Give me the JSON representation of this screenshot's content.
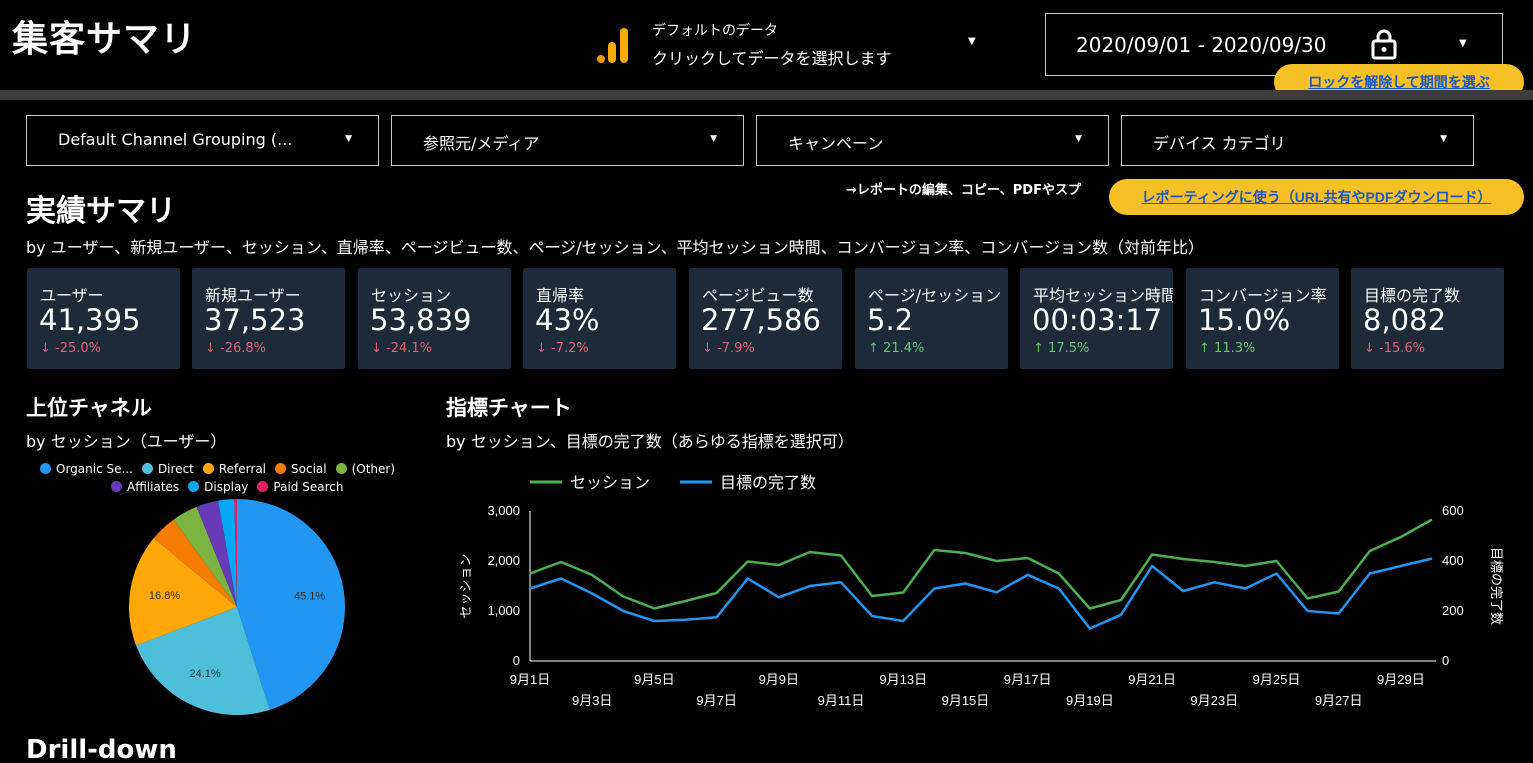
{
  "header": {
    "title": "集客サマリ",
    "datasource_line1": "デフォルトのデータ",
    "datasource_line2": "クリックしてデータを選択します",
    "date_range": "2020/09/01 - 2020/09/30",
    "unlock_button": "ロックを解除して期間を選ぶ"
  },
  "filters": [
    {
      "label": "Default Channel Grouping (..."
    },
    {
      "label": "参照元/メディア"
    },
    {
      "label": "キャンペーン"
    },
    {
      "label": "デバイス カテゴリ"
    }
  ],
  "summary": {
    "title": "実績サマリ",
    "edit_note": "→レポートの編集、コピー、PDFやスプ",
    "report_button": "レポーティングに使う（URL共有やPDFダウンロード）",
    "subtitle": "by ユーザー、新規ユーザー、セッション、直帰率、ページビュー数、ページ/セッション、平均セッション時間、コンバージョン率、コンバージョン数（対前年比）"
  },
  "kpis": [
    {
      "label": "ユーザー",
      "value": "41,395",
      "delta": "-25.0%",
      "dir": "down"
    },
    {
      "label": "新規ユーザー",
      "value": "37,523",
      "delta": "-26.8%",
      "dir": "down"
    },
    {
      "label": "セッション",
      "value": "53,839",
      "delta": "-24.1%",
      "dir": "down"
    },
    {
      "label": "直帰率",
      "value": "43%",
      "delta": "-7.2%",
      "dir": "down"
    },
    {
      "label": "ページビュー数",
      "value": "277,586",
      "delta": "-7.9%",
      "dir": "down"
    },
    {
      "label": "ページ/セッション",
      "value": "5.2",
      "delta": "21.4%",
      "dir": "up"
    },
    {
      "label": "平均セッション時間",
      "value": "00:03:17",
      "delta": "17.5%",
      "dir": "up"
    },
    {
      "label": "コンバージョン率",
      "value": "15.0%",
      "delta": "11.3%",
      "dir": "up"
    },
    {
      "label": "目標の完了数",
      "value": "8,082",
      "delta": "-15.6%",
      "dir": "down"
    }
  ],
  "channels": {
    "title": "上位チャネル",
    "subtitle": "by セッション（ユーザー）"
  },
  "metric_chart": {
    "title": "指標チャート",
    "subtitle": "by セッション、目標の完了数（あらゆる指標を選択可）"
  },
  "drilldown": {
    "title": "Drill-down"
  },
  "colors": {
    "background": "#000000",
    "kpi_card": "#1c2a3a",
    "accent_yellow": "#f6c026",
    "link_blue": "#1a57c8",
    "negative": "#e5606b",
    "positive": "#6cc56a"
  },
  "icons": {
    "datasource": "analytics-bars-icon",
    "date": "lock-icon",
    "dropdown": "caret-down-icon",
    "delta_down": "arrow-down-icon",
    "delta_up": "arrow-up-icon"
  },
  "chart_data": [
    {
      "type": "pie",
      "series": [
        {
          "name": "Organic Se...",
          "value": 45.1,
          "color": "#2196f3"
        },
        {
          "name": "Direct",
          "value": 24.1,
          "color": "#4dbfd9"
        },
        {
          "name": "Referral",
          "value": 16.8,
          "color": "#ffa807"
        },
        {
          "name": "Social",
          "value": 4.0,
          "color": "#f57c00"
        },
        {
          "name": "(Other)",
          "value": 3.9,
          "color": "#7cb342"
        },
        {
          "name": "Affiliates",
          "value": 3.3,
          "color": "#673ab7"
        },
        {
          "name": "Display",
          "value": 2.4,
          "color": "#03a9f4"
        },
        {
          "name": "Paid Search",
          "value": 0.4,
          "color": "#e91e63"
        }
      ],
      "labels_shown": [
        "45.1%",
        "24.1%",
        "16.8%"
      ],
      "legend_position": "top"
    },
    {
      "type": "line",
      "x": [
        "9月1日",
        "9月2日",
        "9月3日",
        "9月4日",
        "9月5日",
        "9月6日",
        "9月7日",
        "9月8日",
        "9月9日",
        "9月10日",
        "9月11日",
        "9月12日",
        "9月13日",
        "9月14日",
        "9月15日",
        "9月16日",
        "9月17日",
        "9月18日",
        "9月19日",
        "9月20日",
        "9月21日",
        "9月22日",
        "9月23日",
        "9月24日",
        "9月25日",
        "9月26日",
        "9月27日",
        "9月28日",
        "9月29日",
        "9月30日"
      ],
      "x_tick_labels_row1": [
        "9月1日",
        "9月5日",
        "9月9日",
        "9月13日",
        "9月17日",
        "9月21日",
        "9月25日",
        "9月29日"
      ],
      "x_tick_labels_row2": [
        "9月3日",
        "9月7日",
        "9月11日",
        "9月15日",
        "9月19日",
        "9月23日",
        "9月27日"
      ],
      "series": [
        {
          "name": "セッション",
          "axis": "left",
          "color": "#4caf50",
          "values": [
            1750,
            1980,
            1720,
            1290,
            1050,
            1200,
            1360,
            1990,
            1920,
            2180,
            2110,
            1300,
            1370,
            2220,
            2160,
            2000,
            2060,
            1750,
            1050,
            1220,
            2130,
            2040,
            1980,
            1900,
            2000,
            1250,
            1390,
            2200,
            2480,
            2830
          ]
        },
        {
          "name": "目標の完了数",
          "axis": "right",
          "color": "#2196f3",
          "values": [
            290,
            330,
            270,
            200,
            160,
            165,
            175,
            330,
            255,
            300,
            315,
            180,
            160,
            290,
            310,
            275,
            345,
            290,
            130,
            185,
            380,
            280,
            315,
            290,
            350,
            200,
            190,
            350,
            380,
            410
          ]
        }
      ],
      "left_axis": {
        "label": "セッション",
        "ticks": [
          "0",
          "1,000",
          "2,000",
          "3,000"
        ],
        "range": [
          0,
          3000
        ]
      },
      "right_axis": {
        "label": "目標の完了数",
        "ticks": [
          "0",
          "200",
          "400",
          "600"
        ],
        "range": [
          0,
          600
        ]
      },
      "legend_position": "top-left",
      "grid": false
    }
  ]
}
